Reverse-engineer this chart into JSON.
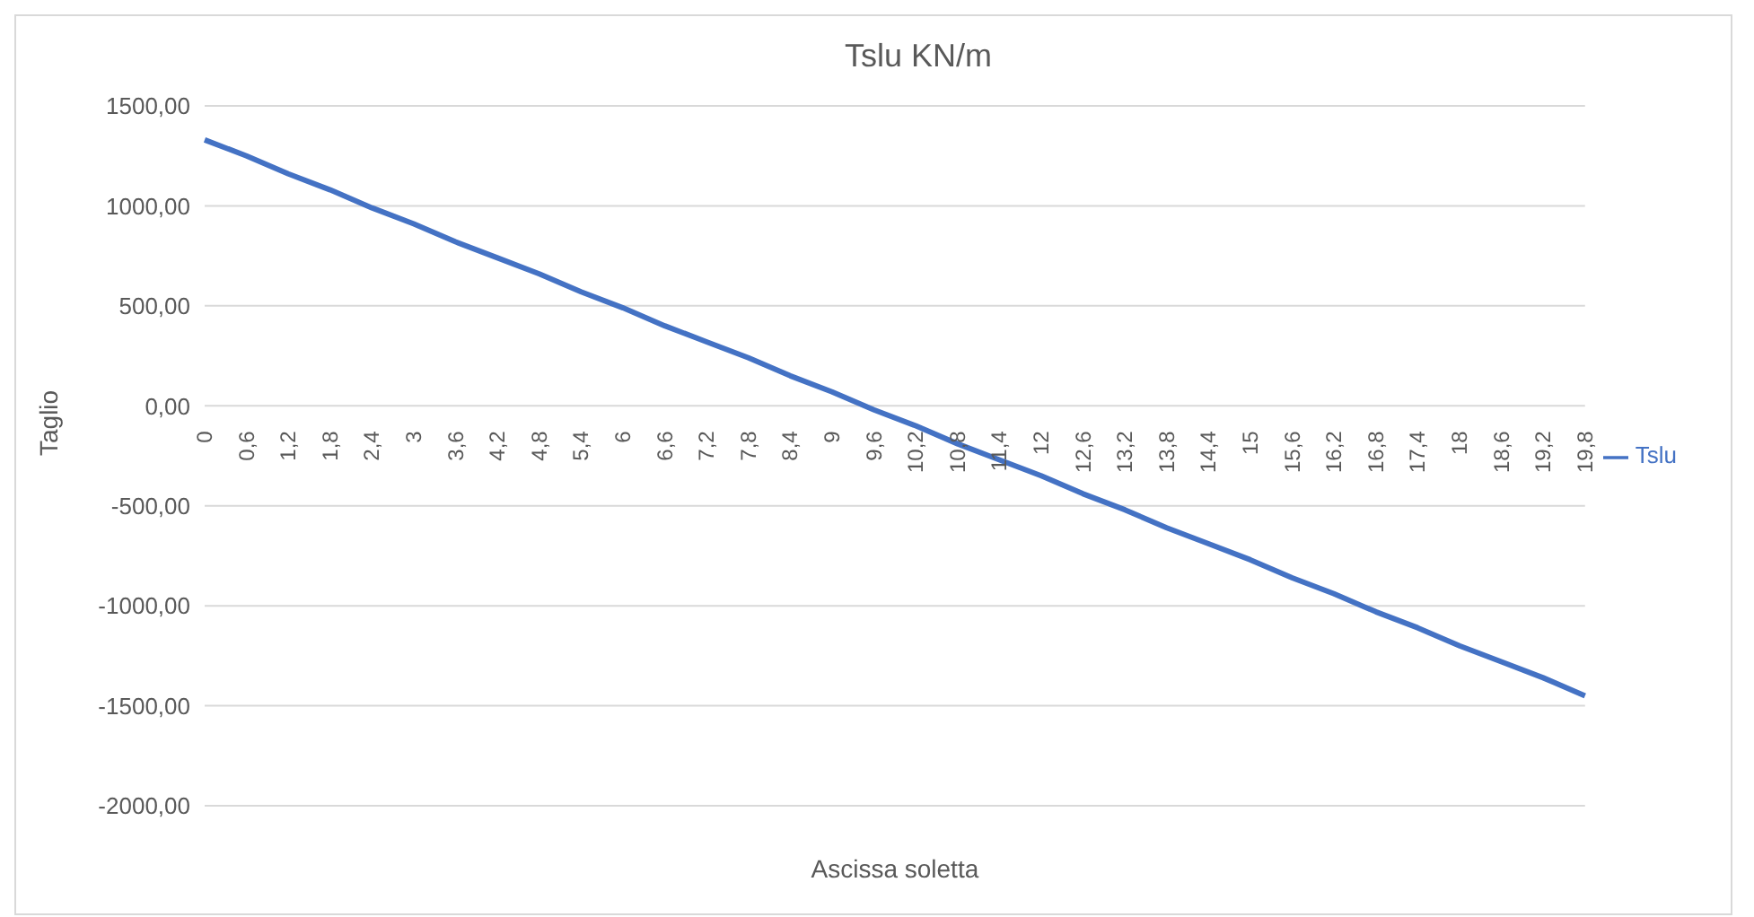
{
  "chart_data": {
    "type": "line",
    "title": "Tslu KN/m",
    "xlabel": "Ascissa soletta",
    "ylabel": "Taglio",
    "categories": [
      "0",
      "0,6",
      "1,2",
      "1,8",
      "2,4",
      "3",
      "3,6",
      "4,2",
      "4,8",
      "5,4",
      "6",
      "6,6",
      "7,2",
      "7,8",
      "8,4",
      "9",
      "9,6",
      "10,2",
      "10,8",
      "11,4",
      "12",
      "12,6",
      "13,2",
      "13,8",
      "14,4",
      "15",
      "15,6",
      "16,2",
      "16,8",
      "17,4",
      "18",
      "18,6",
      "19,2",
      "19,8"
    ],
    "series": [
      {
        "name": "Tslu",
        "color": "#4472c4",
        "values": [
          1330,
          1250,
          1160,
          1080,
          990,
          910,
          820,
          740,
          660,
          570,
          490,
          400,
          320,
          240,
          150,
          70,
          -20,
          -100,
          -190,
          -270,
          -350,
          -440,
          -520,
          -610,
          -690,
          -770,
          -860,
          -940,
          -1030,
          -1110,
          -1200,
          -1280,
          -1360,
          -1450
        ]
      }
    ],
    "ylim": [
      -2000,
      1500
    ],
    "yticks": [
      {
        "value": -2000,
        "label": "-2000,00"
      },
      {
        "value": -1500,
        "label": "-1500,00"
      },
      {
        "value": -1000,
        "label": "-1000,00"
      },
      {
        "value": -500,
        "label": "-500,00"
      },
      {
        "value": 0,
        "label": "0,00"
      },
      {
        "value": 500,
        "label": "500,00"
      },
      {
        "value": 1000,
        "label": "1000,00"
      },
      {
        "value": 1500,
        "label": "1500,00"
      }
    ],
    "grid": "y",
    "legend": "right",
    "marker": "none",
    "line_style": "solid"
  }
}
